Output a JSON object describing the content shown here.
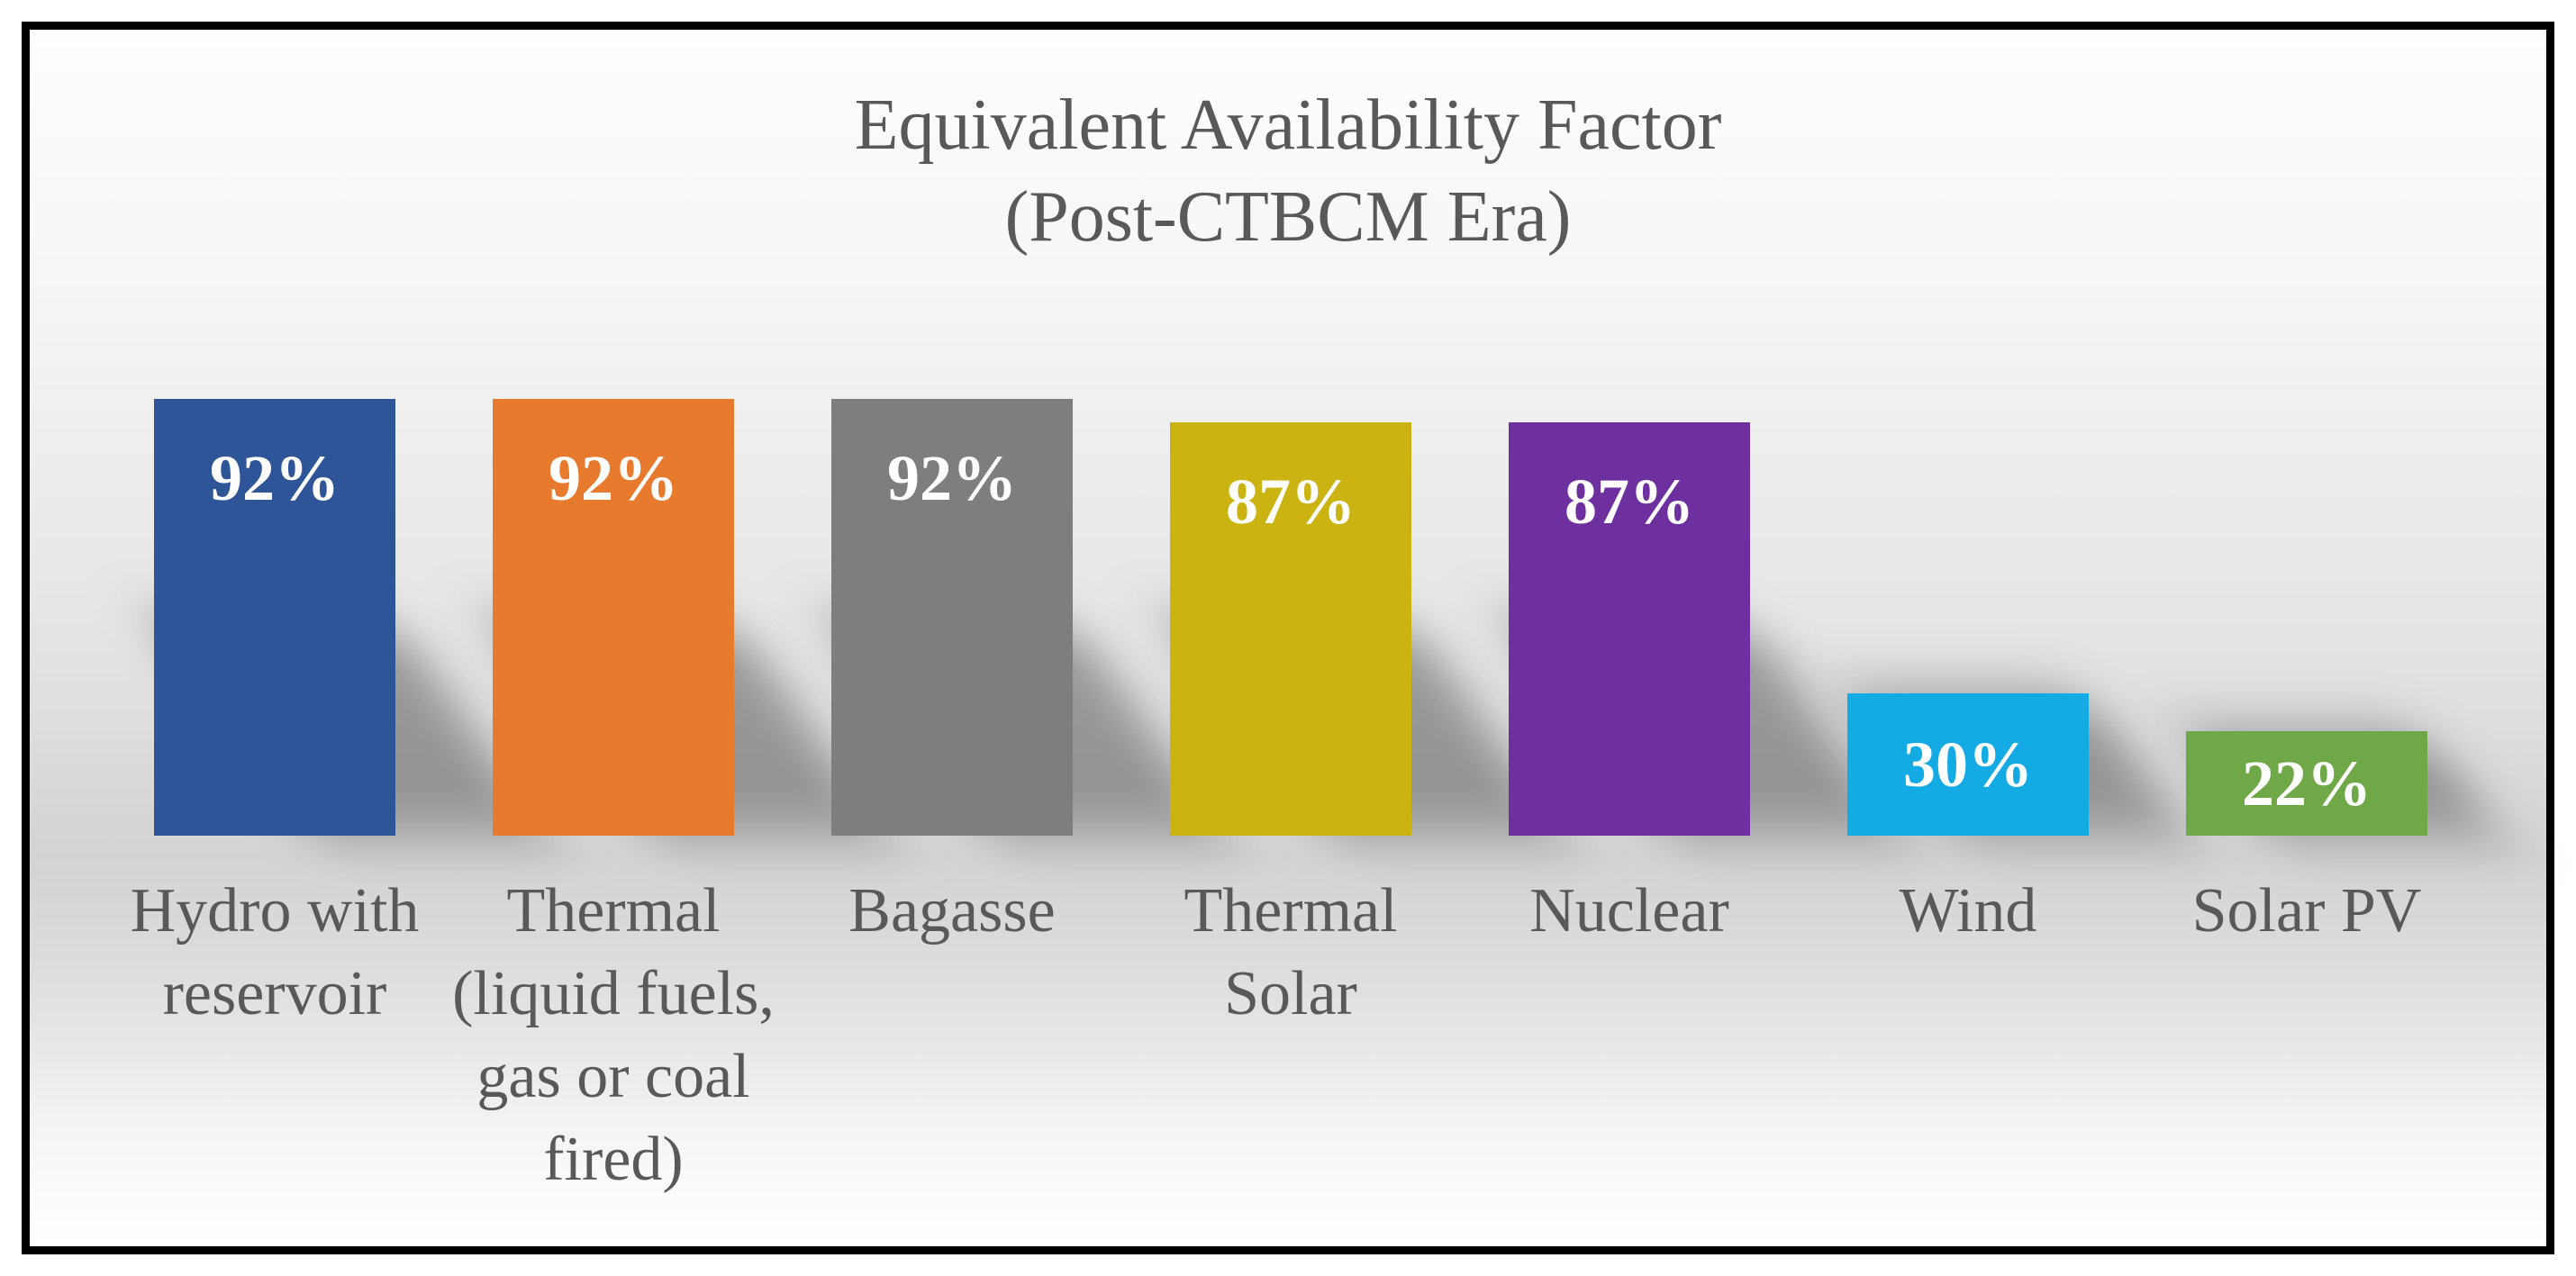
{
  "chart_data": {
    "type": "bar",
    "title": "Equivalent Availability Factor (Post-CTBCM Era)",
    "title_lines": [
      "Equivalent Availability Factor",
      "(Post-CTBCM Era)"
    ],
    "categories": [
      "Hydro with reservoir",
      "Thermal (liquid fuels, gas or coal fired)",
      "Bagasse",
      "Thermal Solar",
      "Nuclear",
      "Wind",
      "Solar PV"
    ],
    "category_lines": [
      [
        "Hydro with",
        "reservoir"
      ],
      [
        "Thermal",
        "(liquid fuels,",
        "gas or coal",
        "fired)"
      ],
      [
        "Bagasse"
      ],
      [
        "Thermal",
        "Solar"
      ],
      [
        "Nuclear"
      ],
      [
        "Wind"
      ],
      [
        "Solar PV"
      ]
    ],
    "values": [
      92,
      92,
      92,
      87,
      87,
      30,
      22
    ],
    "data_labels": [
      "92%",
      "92%",
      "92%",
      "87%",
      "87%",
      "30%",
      "22%"
    ],
    "bar_colors": [
      "#2E5597",
      "#E87A2E",
      "#7E7E7E",
      "#CBB411",
      "#6E2F9F",
      "#14ABE4",
      "#6FA846"
    ],
    "ylim": [
      0,
      100
    ],
    "unit": "%",
    "axes_visible": false,
    "gridlines": false,
    "legend_position": "none",
    "data_label_position": "inside-end",
    "data_label_color": "#FFFFFF",
    "text_color": "#595959",
    "frame_border_color": "#000000",
    "background_gradient": [
      "#FFFFFF",
      "#E7E7E7",
      "#D3D3D3",
      "#FFFFFF"
    ]
  }
}
